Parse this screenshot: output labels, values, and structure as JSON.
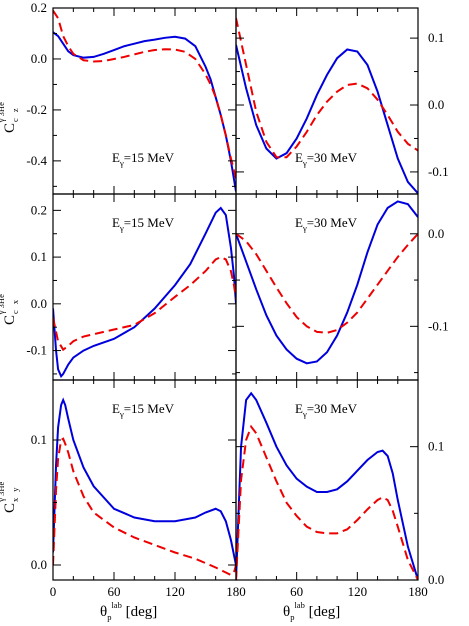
{
  "chart_data": {
    "type": "line",
    "x_axis": {
      "ticks": [
        0,
        60,
        120,
        180
      ],
      "tick_labels": [
        "0",
        "60",
        "120",
        "180"
      ],
      "label": {
        "theta": "θ",
        "sub": "p",
        "sup": "lab",
        "unit": "[deg]"
      }
    },
    "row_labels": [
      {
        "main": "C",
        "sub1": "c",
        "sub2": "z",
        "sup": "γ 3He"
      },
      {
        "main": "C",
        "sub1": "c",
        "sub2": "x",
        "sup": "γ 3He"
      },
      {
        "main": "C",
        "sub1": "x",
        "sub2": "y",
        "sup": "γ 3He"
      }
    ],
    "series_style": [
      {
        "color": "#0000dd",
        "dash": "solid"
      },
      {
        "color": "#ee0000",
        "dash": "dashed"
      }
    ],
    "panels": [
      {
        "row": 0,
        "col": 0,
        "xlim": [
          0,
          180
        ],
        "ylim": [
          -0.53,
          0.2
        ],
        "y_ticks": [
          0.2,
          0,
          -0.2,
          -0.4
        ],
        "y_tick_labels": [
          "0.2",
          "0.0",
          "-0.2",
          "-0.4"
        ],
        "y_axis_side": "left",
        "annotation": {
          "main": "E",
          "sub": "γ",
          "rest": "=15 MeV"
        },
        "series": [
          {
            "x": [
              0,
              5,
              10,
              15,
              20,
              30,
              40,
              50,
              60,
              70,
              80,
              90,
              100,
              110,
              120,
              130,
              140,
              150,
              155,
              160,
              165,
              170,
              175,
              180
            ],
            "y": [
              0.105,
              0.09,
              0.06,
              0.03,
              0.015,
              0.005,
              0.008,
              0.02,
              0.035,
              0.05,
              0.06,
              0.07,
              0.076,
              0.083,
              0.087,
              0.08,
              0.05,
              -0.03,
              -0.08,
              -0.15,
              -0.22,
              -0.3,
              -0.4,
              -0.52
            ]
          },
          {
            "x": [
              0,
              5,
              10,
              15,
              20,
              30,
              40,
              50,
              60,
              70,
              80,
              90,
              100,
              110,
              120,
              130,
              140,
              150,
              155,
              160,
              165,
              170,
              175,
              180
            ],
            "y": [
              0.19,
              0.16,
              0.09,
              0.05,
              0.02,
              -0.005,
              -0.01,
              -0.008,
              0.0,
              0.008,
              0.018,
              0.028,
              0.035,
              0.038,
              0.037,
              0.028,
              0.0,
              -0.06,
              -0.1,
              -0.15,
              -0.22,
              -0.3,
              -0.39,
              -0.47
            ]
          }
        ]
      },
      {
        "row": 0,
        "col": 1,
        "xlim": [
          0,
          180
        ],
        "ylim": [
          -0.133,
          0.145
        ],
        "y_ticks": [
          0.1,
          0,
          -0.1
        ],
        "y_tick_labels": [
          "0.1",
          "0.0",
          "-0.1"
        ],
        "y_axis_side": "right",
        "annotation": {
          "main": "E",
          "sub": "γ",
          "rest": "=30 MeV"
        },
        "series": [
          {
            "x": [
              0,
              10,
              20,
              30,
              40,
              50,
              60,
              70,
              80,
              90,
              100,
              110,
              120,
              130,
              140,
              150,
              160,
              170,
              180
            ],
            "y": [
              0.09,
              0.025,
              -0.03,
              -0.065,
              -0.08,
              -0.072,
              -0.05,
              -0.02,
              0.015,
              0.045,
              0.07,
              0.083,
              0.08,
              0.06,
              0.02,
              -0.03,
              -0.08,
              -0.115,
              -0.132
            ]
          },
          {
            "x": [
              0,
              10,
              20,
              30,
              40,
              50,
              60,
              70,
              80,
              90,
              100,
              110,
              120,
              130,
              140,
              150,
              160,
              170,
              180
            ],
            "y": [
              0.13,
              0.06,
              -0.01,
              -0.055,
              -0.078,
              -0.078,
              -0.062,
              -0.04,
              -0.015,
              0.005,
              0.02,
              0.03,
              0.032,
              0.025,
              0.008,
              -0.015,
              -0.04,
              -0.058,
              -0.068
            ]
          }
        ]
      },
      {
        "row": 1,
        "col": 0,
        "xlim": [
          0,
          180
        ],
        "ylim": [
          -0.163,
          0.235
        ],
        "y_ticks": [
          0.2,
          0.1,
          0,
          -0.1
        ],
        "y_tick_labels": [
          "0.2",
          "0.1",
          "0.0",
          "-0.1"
        ],
        "y_axis_side": "left",
        "annotation": {
          "main": "E",
          "sub": "γ",
          "rest": "=15 MeV"
        },
        "series": [
          {
            "x": [
              0,
              3,
              5,
              8,
              10,
              15,
              20,
              30,
              40,
              60,
              80,
              100,
              120,
              135,
              150,
              160,
              165,
              170,
              175,
              178,
              180
            ],
            "y": [
              -0.01,
              -0.1,
              -0.14,
              -0.155,
              -0.15,
              -0.13,
              -0.115,
              -0.1,
              -0.09,
              -0.075,
              -0.05,
              -0.01,
              0.04,
              0.085,
              0.15,
              0.195,
              0.205,
              0.19,
              0.12,
              0.06,
              0.0
            ]
          },
          {
            "x": [
              0,
              5,
              10,
              15,
              20,
              30,
              40,
              60,
              80,
              100,
              120,
              135,
              150,
              160,
              165,
              170,
              175,
              178,
              180
            ],
            "y": [
              -0.03,
              -0.08,
              -0.098,
              -0.09,
              -0.08,
              -0.07,
              -0.065,
              -0.055,
              -0.045,
              -0.02,
              0.015,
              0.04,
              0.07,
              0.095,
              0.1,
              0.095,
              0.07,
              0.04,
              0.01
            ]
          }
        ]
      },
      {
        "row": 1,
        "col": 1,
        "xlim": [
          0,
          180
        ],
        "ylim": [
          -0.158,
          0.043
        ],
        "y_ticks": [
          0,
          -0.1
        ],
        "y_tick_labels": [
          "0.0",
          "-0.1"
        ],
        "y_axis_side": "right",
        "annotation": {
          "main": "E",
          "sub": "γ",
          "rest": "=30 MeV"
        },
        "series": [
          {
            "x": [
              0,
              10,
              20,
              30,
              40,
              50,
              60,
              70,
              80,
              90,
              100,
              110,
              120,
              130,
              140,
              150,
              160,
              170,
              175,
              180
            ],
            "y": [
              0.0,
              -0.03,
              -0.06,
              -0.088,
              -0.11,
              -0.125,
              -0.135,
              -0.14,
              -0.138,
              -0.128,
              -0.11,
              -0.085,
              -0.055,
              -0.02,
              0.01,
              0.028,
              0.035,
              0.032,
              0.025,
              0.018
            ]
          },
          {
            "x": [
              0,
              10,
              20,
              30,
              40,
              50,
              60,
              70,
              80,
              90,
              100,
              110,
              120,
              130,
              140,
              150,
              160,
              170,
              180
            ],
            "y": [
              0.0,
              -0.008,
              -0.022,
              -0.04,
              -0.058,
              -0.075,
              -0.09,
              -0.1,
              -0.106,
              -0.107,
              -0.104,
              -0.096,
              -0.085,
              -0.07,
              -0.055,
              -0.04,
              -0.025,
              -0.012,
              0.0
            ]
          }
        ]
      },
      {
        "row": 2,
        "col": 0,
        "xlim": [
          0,
          180
        ],
        "ylim": [
          -0.012,
          0.148
        ],
        "y_ticks": [
          0.1,
          0
        ],
        "y_tick_labels": [
          "0.1",
          "0.0"
        ],
        "y_axis_side": "left",
        "annotation": {
          "main": "E",
          "sub": "γ",
          "rest": "=15 MeV"
        },
        "series": [
          {
            "x": [
              0,
              3,
              5,
              8,
              10,
              12,
              15,
              20,
              30,
              40,
              60,
              80,
              100,
              120,
              140,
              150,
              160,
              165,
              170,
              175,
              180
            ],
            "y": [
              0.01,
              0.08,
              0.11,
              0.128,
              0.132,
              0.128,
              0.117,
              0.1,
              0.078,
              0.063,
              0.045,
              0.038,
              0.035,
              0.035,
              0.038,
              0.042,
              0.045,
              0.043,
              0.035,
              0.02,
              0.0
            ]
          },
          {
            "x": [
              0,
              3,
              5,
              8,
              10,
              12,
              15,
              20,
              30,
              40,
              60,
              80,
              100,
              120,
              140,
              160,
              170,
              175,
              178,
              180
            ],
            "y": [
              0.0,
              0.06,
              0.085,
              0.1,
              0.101,
              0.097,
              0.09,
              0.075,
              0.055,
              0.042,
              0.03,
              0.022,
              0.016,
              0.01,
              0.005,
              -0.002,
              -0.006,
              -0.008,
              -0.006,
              0.0
            ]
          }
        ]
      },
      {
        "row": 2,
        "col": 1,
        "xlim": [
          0,
          180
        ],
        "ylim": [
          0,
          0.15
        ],
        "y_ticks": [
          0.1,
          0
        ],
        "y_tick_labels": [
          "0.1",
          "0.0"
        ],
        "y_axis_side": "right",
        "annotation": {
          "main": "E",
          "sub": "γ",
          "rest": "=30 MeV"
        },
        "series": [
          {
            "x": [
              0,
              5,
              10,
              15,
              20,
              30,
              40,
              50,
              60,
              70,
              80,
              90,
              100,
              110,
              120,
              130,
              140,
              145,
              150,
              155,
              160,
              170,
              180
            ],
            "y": [
              0.0,
              0.1,
              0.135,
              0.14,
              0.135,
              0.118,
              0.1,
              0.086,
              0.076,
              0.07,
              0.066,
              0.066,
              0.068,
              0.074,
              0.082,
              0.09,
              0.096,
              0.097,
              0.093,
              0.08,
              0.06,
              0.025,
              0.0
            ]
          },
          {
            "x": [
              0,
              5,
              10,
              15,
              20,
              30,
              40,
              50,
              60,
              70,
              80,
              90,
              100,
              110,
              120,
              130,
              140,
              145,
              150,
              155,
              160,
              170,
              180
            ],
            "y": [
              0.0,
              0.075,
              0.105,
              0.115,
              0.11,
              0.092,
              0.074,
              0.058,
              0.048,
              0.04,
              0.036,
              0.035,
              0.035,
              0.038,
              0.045,
              0.053,
              0.06,
              0.062,
              0.06,
              0.052,
              0.04,
              0.015,
              0.0
            ]
          }
        ]
      }
    ]
  }
}
